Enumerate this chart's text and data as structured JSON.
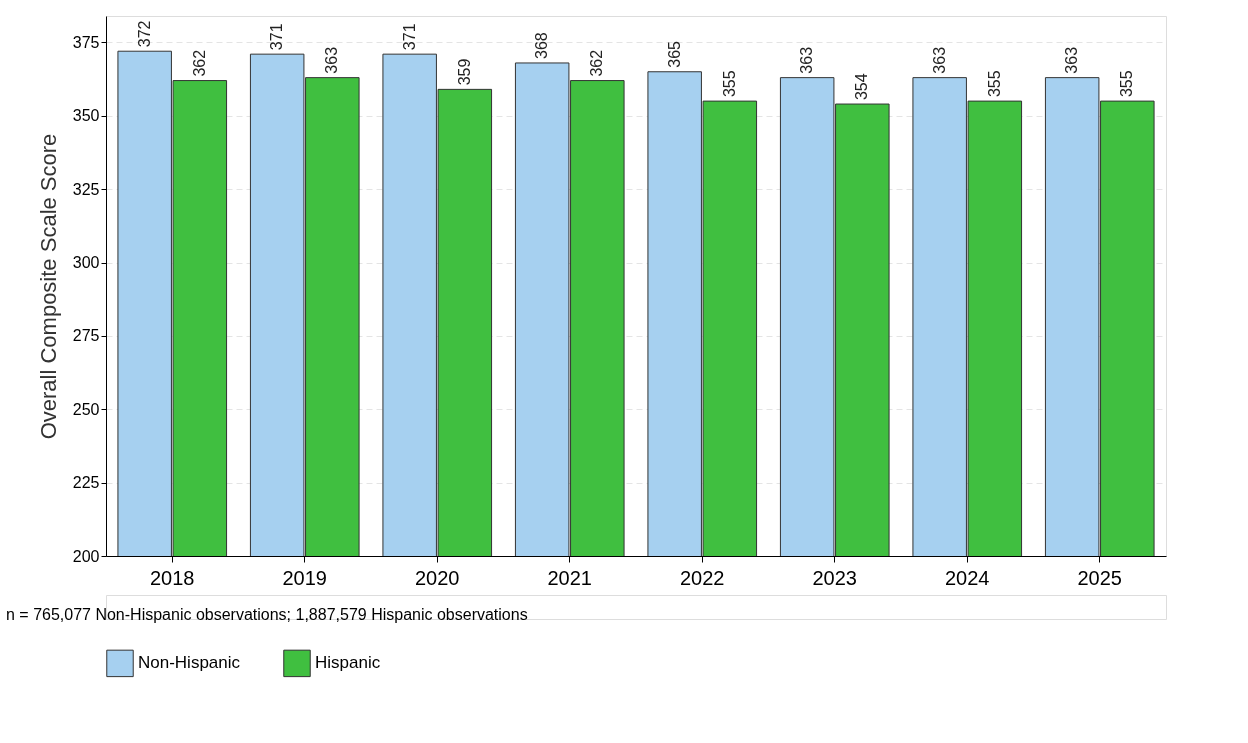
{
  "chart_data": {
    "type": "bar",
    "ylabel": "Overall Composite Scale Score",
    "categories": [
      "2018",
      "2019",
      "2020",
      "2021",
      "2022",
      "2023",
      "2024",
      "2025"
    ],
    "series": [
      {
        "name": "Non-Hispanic",
        "color": "#a6d0f0",
        "values": [
          372,
          371,
          371,
          368,
          365,
          363,
          363,
          363
        ]
      },
      {
        "name": "Hispanic",
        "color": "#40bf40",
        "values": [
          362,
          363,
          359,
          362,
          355,
          354,
          355,
          355
        ]
      }
    ],
    "ylim": [
      200,
      384
    ],
    "yticks": [
      200,
      225,
      250,
      275,
      300,
      325,
      350,
      375
    ],
    "grid": "y",
    "legend": "bottom",
    "data_labels": true,
    "annotations": [
      "n = 765,077 Non-Hispanic observations; 1,887,579 Hispanic observations"
    ]
  }
}
